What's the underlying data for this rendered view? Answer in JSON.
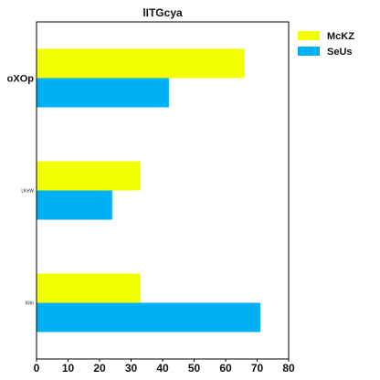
{
  "chart_data": {
    "type": "bar",
    "orientation": "horizontal",
    "title": "lITGcya",
    "categories": [
      "oXOp",
      "LKeW",
      "Khh"
    ],
    "series": [
      {
        "name": "McKZ",
        "color": "#f2ff00",
        "values": [
          66,
          33,
          33
        ]
      },
      {
        "name": "SeUs",
        "color": "#00b0f5",
        "values": [
          42,
          24,
          71
        ]
      }
    ],
    "xlim": [
      0,
      80
    ],
    "xticks": [
      0,
      10,
      20,
      30,
      40,
      50,
      60,
      70,
      80
    ],
    "xlabel": "",
    "ylabel": "",
    "grid": false,
    "legend_position": "top-right"
  }
}
